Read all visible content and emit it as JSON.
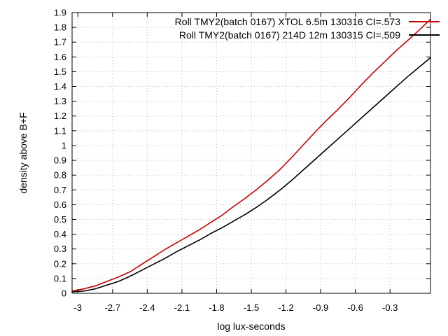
{
  "chart_data": {
    "type": "line",
    "title": "",
    "xlabel": "log lux-seconds",
    "ylabel": "density above B+F",
    "xlim": [
      -3.05,
      0.05
    ],
    "ylim": [
      0,
      1.9
    ],
    "x_ticks": [
      -3,
      -2.7,
      -2.4,
      -2.1,
      -1.8,
      -1.5,
      -1.2,
      -0.9,
      -0.6,
      -0.3
    ],
    "x_tick_labels": [
      "-3",
      "-2.7",
      "-2.4",
      "-2.1",
      "-1.8",
      "-1.5",
      "-1.2",
      "-0.9",
      "-0.6",
      "-0.3"
    ],
    "y_ticks": [
      0,
      0.1,
      0.2,
      0.3,
      0.4,
      0.5,
      0.6,
      0.7,
      0.8,
      0.9,
      1,
      1.1,
      1.2,
      1.3,
      1.4,
      1.5,
      1.6,
      1.7,
      1.8,
      1.9
    ],
    "y_tick_labels": [
      "0",
      "0.1",
      "0.2",
      "0.3",
      "0.4",
      "0.5",
      "0.6",
      "0.7",
      "0.8",
      "0.9",
      "1",
      "1.1",
      "1.2",
      "1.3",
      "1.4",
      "1.5",
      "1.6",
      "1.7",
      "1.8",
      "1.9"
    ],
    "grid": true,
    "legend_position": "top-right",
    "series": [
      {
        "name": "Roll TMY2(batch 0167) XTOL 6.5m 130316 CI=.573",
        "color": "#cc0000",
        "x": [
          -3.05,
          -2.95,
          -2.85,
          -2.75,
          -2.65,
          -2.55,
          -2.45,
          -2.35,
          -2.25,
          -2.15,
          -2.05,
          -1.95,
          -1.85,
          -1.75,
          -1.65,
          -1.55,
          -1.45,
          -1.35,
          -1.25,
          -1.15,
          -1.05,
          -0.95,
          -0.85,
          -0.75,
          -0.65,
          -0.55,
          -0.45,
          -0.35,
          -0.25,
          -0.15,
          -0.05,
          0.05
        ],
        "y": [
          0.015,
          0.03,
          0.05,
          0.08,
          0.11,
          0.145,
          0.195,
          0.245,
          0.295,
          0.34,
          0.385,
          0.43,
          0.48,
          0.53,
          0.59,
          0.645,
          0.705,
          0.77,
          0.84,
          0.92,
          1.005,
          1.09,
          1.17,
          1.245,
          1.325,
          1.41,
          1.49,
          1.565,
          1.64,
          1.71,
          1.78,
          1.855
        ]
      },
      {
        "name": "Roll TMY2(batch 0167) 214D 12m 130315 CI=.509",
        "color": "#000000",
        "x": [
          -3.05,
          -2.95,
          -2.85,
          -2.75,
          -2.65,
          -2.55,
          -2.45,
          -2.35,
          -2.25,
          -2.15,
          -2.05,
          -1.95,
          -1.85,
          -1.75,
          -1.65,
          -1.55,
          -1.45,
          -1.35,
          -1.25,
          -1.15,
          -1.05,
          -0.95,
          -0.85,
          -0.75,
          -0.65,
          -0.55,
          -0.45,
          -0.35,
          -0.25,
          -0.15,
          -0.05,
          0.05
        ],
        "y": [
          0.01,
          0.015,
          0.03,
          0.055,
          0.08,
          0.115,
          0.155,
          0.195,
          0.235,
          0.28,
          0.32,
          0.36,
          0.405,
          0.445,
          0.49,
          0.535,
          0.585,
          0.64,
          0.7,
          0.765,
          0.835,
          0.905,
          0.975,
          1.045,
          1.115,
          1.185,
          1.255,
          1.325,
          1.395,
          1.465,
          1.53,
          1.595
        ]
      }
    ]
  }
}
